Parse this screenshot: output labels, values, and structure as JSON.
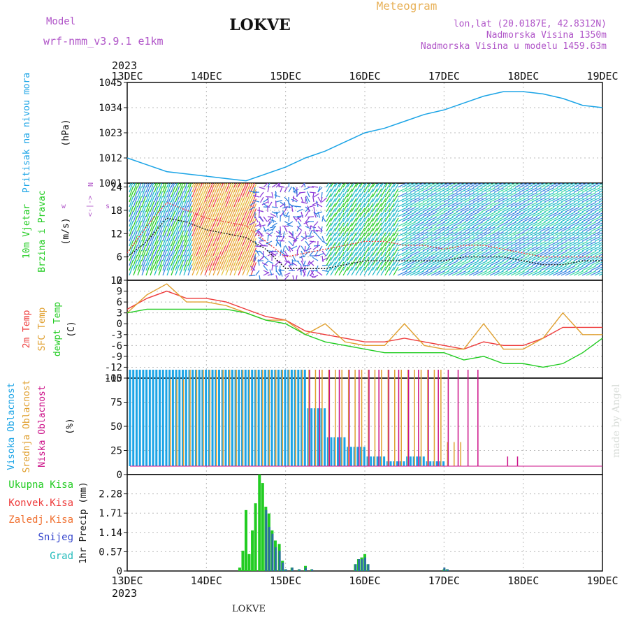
{
  "header": {
    "station": "LOKVE",
    "model_label": "Model",
    "model_name": "wrf-nmm_v3.9.1 e1km",
    "product": "Meteogram",
    "lonlat": "lon,lat (20.0187E, 42.8312N)",
    "altitude": "Nadmorska Visina 1350m",
    "model_altitude": "Nadmorska Visina u modelu 1459.63m",
    "year_top": "2023",
    "year_bottom": "2023",
    "footer": "LOKVE",
    "watermark": "made by Angel"
  },
  "colors": {
    "pressure": "#1ba4e6",
    "t2m": "#ee3b3b",
    "sfc": "#e0a030",
    "dew": "#22cc22",
    "high_cloud": "#1ba4e6",
    "mid_cloud": "#e0a030",
    "low_cloud": "#cc1188",
    "total_precip": "#22cc22",
    "conv_precip": "#ee3b3b",
    "frozen_precip": "#f07030",
    "snow": "#3344cc",
    "graupel": "#22bbbb",
    "violet_text": "#b055c8",
    "meteogram_text": "#e8b25a"
  },
  "chart_data": [
    {
      "type": "line",
      "id": "pressure",
      "ylabel_lines": [
        "Pritisak na nivou mora"
      ],
      "unit": "(hPa)",
      "x_tick_labels": [
        "13DEC",
        "14DEC",
        "15DEC",
        "16DEC",
        "17DEC",
        "18DEC",
        "19DEC"
      ],
      "ylim": [
        1001,
        1045
      ],
      "yticks": [
        1001,
        1012,
        1023,
        1034,
        1045
      ],
      "grid": true,
      "x": [
        0,
        0.25,
        0.5,
        0.75,
        1.0,
        1.25,
        1.5,
        1.75,
        2.0,
        2.25,
        2.5,
        2.75,
        3.0,
        3.25,
        3.5,
        3.75,
        4.0,
        4.25,
        4.5,
        4.75,
        5.0,
        5.25,
        5.5,
        5.75,
        6.0
      ],
      "series": [
        {
          "values": [
            1012,
            1009,
            1006,
            1005,
            1004,
            1003,
            1002,
            1005,
            1008,
            1012,
            1015,
            1019,
            1023,
            1025,
            1028,
            1031,
            1033,
            1036,
            1039,
            1041,
            1041,
            1040,
            1038,
            1035,
            1034
          ]
        }
      ]
    },
    {
      "type": "wind",
      "id": "wind",
      "ylabel_lines": [
        "10m Vjetar",
        "Brzina i Pravac"
      ],
      "unit": "(m/s)",
      "compass": [
        "w",
        "<-|->",
        "s",
        "N"
      ],
      "ylim": [
        0,
        25
      ],
      "yticks": [
        0,
        6,
        12,
        18,
        24
      ],
      "grid": true,
      "x": [
        0,
        0.25,
        0.5,
        0.75,
        1.0,
        1.25,
        1.5,
        1.75,
        2.0,
        2.25,
        2.5,
        2.75,
        3.0,
        3.25,
        3.5,
        3.75,
        4.0,
        4.25,
        4.5,
        4.75,
        5.0,
        5.25,
        5.5,
        5.75,
        6.0
      ],
      "series": [
        {
          "name": "mean",
          "values": [
            6,
            10,
            16,
            15,
            13,
            12,
            11,
            8,
            3,
            3,
            3,
            4,
            5,
            5,
            5,
            5,
            5,
            6,
            6,
            6,
            5,
            4,
            4,
            5,
            5
          ]
        },
        {
          "name": "gust",
          "values": [
            7,
            14,
            20,
            18,
            16,
            15,
            14,
            10,
            6,
            7,
            8,
            9,
            10,
            10,
            9,
            9,
            8,
            9,
            9,
            8,
            7,
            6,
            6,
            6,
            6
          ]
        }
      ]
    },
    {
      "type": "line",
      "id": "temperature",
      "ylabel_lines": [
        "2m Temp",
        "SFC Temp",
        "dewpt Temp"
      ],
      "unit": "(C)",
      "ylim": [
        -15,
        12
      ],
      "yticks": [
        -15,
        -12,
        -9,
        -6,
        -3,
        0,
        3,
        6,
        9,
        12
      ],
      "grid": true,
      "x": [
        0,
        0.25,
        0.5,
        0.75,
        1.0,
        1.25,
        1.5,
        1.75,
        2.0,
        2.25,
        2.5,
        2.75,
        3.0,
        3.25,
        3.5,
        3.75,
        4.0,
        4.25,
        4.5,
        4.75,
        5.0,
        5.25,
        5.5,
        5.75,
        6.0
      ],
      "series": [
        {
          "name": "2m Temp",
          "values": [
            4,
            7,
            9,
            7,
            7,
            6,
            4,
            2,
            1,
            -2,
            -3,
            -4,
            -5,
            -5,
            -4,
            -5,
            -6,
            -7,
            -5,
            -6,
            -6,
            -4,
            -1,
            -1,
            -1
          ]
        },
        {
          "name": "SFC Temp",
          "values": [
            3,
            8,
            11,
            6,
            6,
            5,
            3,
            1,
            1,
            -3,
            0,
            -5,
            -6,
            -6,
            0,
            -6,
            -7,
            -7,
            0,
            -7,
            -7,
            -4,
            3,
            -3,
            -3
          ]
        },
        {
          "name": "dewpt Temp",
          "values": [
            3,
            4,
            4,
            4,
            4,
            4,
            3,
            1,
            0,
            -3,
            -5,
            -6,
            -7,
            -8,
            -8,
            -8,
            -8,
            -10,
            -9,
            -11,
            -11,
            -12,
            -11,
            -8,
            -4
          ]
        }
      ]
    },
    {
      "type": "bar",
      "id": "cloud",
      "ylabel_lines": [
        "Visoka Oblacnost",
        "Srednja Oblacnost",
        "Niska Oblacnost"
      ],
      "unit": "(%)",
      "ylim": [
        0,
        100
      ],
      "yticks": [
        0,
        25,
        50,
        75,
        100
      ],
      "grid": true,
      "x": [
        0,
        0.25,
        0.5,
        0.75,
        1.0,
        1.25,
        1.5,
        1.75,
        2.0,
        2.25,
        2.5,
        2.75,
        3.0,
        3.25,
        3.5,
        3.75,
        4.0,
        4.25,
        4.5,
        4.75,
        5.0,
        5.25,
        5.5,
        5.75,
        6.0
      ],
      "series": [
        {
          "name": "Visoka Oblacnost",
          "values": [
            100,
            100,
            100,
            100,
            100,
            100,
            100,
            100,
            100,
            60,
            30,
            20,
            10,
            5,
            10,
            5,
            0,
            0,
            0,
            0,
            0,
            0,
            0,
            0,
            0
          ]
        },
        {
          "name": "Srednja Oblacnost",
          "values": [
            0,
            0,
            90,
            100,
            100,
            100,
            100,
            100,
            100,
            100,
            100,
            100,
            100,
            100,
            100,
            100,
            25,
            0,
            0,
            0,
            0,
            0,
            0,
            0,
            0
          ]
        },
        {
          "name": "Niska Oblacnost",
          "values": [
            0,
            0,
            0,
            0,
            0,
            0,
            0,
            0,
            0,
            100,
            100,
            100,
            100,
            100,
            100,
            100,
            100,
            100,
            0,
            10,
            0,
            0,
            0,
            0,
            0
          ]
        }
      ]
    },
    {
      "type": "bar",
      "id": "precip",
      "ylabel_lines": [
        "1hr Precip (mm)"
      ],
      "legend": [
        "Ukupna Kisa",
        "Konvek.Kisa",
        "Zaledj.Kisa",
        "Snijeg",
        "Grad"
      ],
      "ylim": [
        0,
        2.85
      ],
      "yticks": [
        0,
        0.57,
        1.14,
        1.71,
        2.28
      ],
      "ytick_labels": [
        "0",
        "0.57",
        "1.14",
        "1.71",
        "2.28"
      ],
      "grid": true,
      "x": [
        1.42,
        1.46,
        1.5,
        1.54,
        1.58,
        1.62,
        1.67,
        1.71,
        1.75,
        1.79,
        1.83,
        1.87,
        1.92,
        1.96,
        2.0,
        2.08,
        2.17,
        2.25,
        2.33,
        2.88,
        2.92,
        2.96,
        3.0,
        3.04,
        4.0,
        4.04
      ],
      "series": [
        {
          "name": "Ukupna Kisa",
          "values": [
            0.1,
            0.6,
            1.8,
            0.5,
            1.2,
            2.0,
            2.85,
            2.6,
            1.9,
            1.7,
            1.2,
            0.9,
            0.8,
            0.3,
            0.05,
            0.1,
            0.05,
            0.15,
            0.05,
            0.2,
            0.35,
            0.4,
            0.5,
            0.2,
            0.05,
            0.05
          ]
        },
        {
          "name": "Snijeg",
          "values": [
            0,
            0,
            0,
            0,
            0,
            0,
            0,
            0,
            1.8,
            1.3,
            1.1,
            0.7,
            0.6,
            0.25,
            0.05,
            0.1,
            0.05,
            0.1,
            0.05,
            0.2,
            0.35,
            0.35,
            0.4,
            0.2,
            0.1,
            0.05
          ]
        }
      ]
    }
  ]
}
